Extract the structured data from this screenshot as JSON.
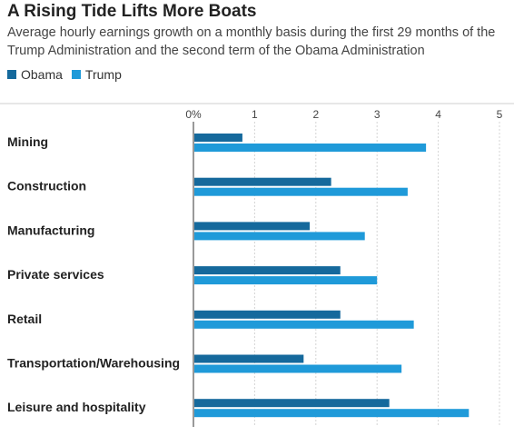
{
  "chart_data": {
    "type": "bar",
    "orientation": "horizontal",
    "title": "A Rising Tide Lifts More Boats",
    "subtitle": "Average hourly earnings growth on a monthly basis during the first 29 months of the Trump Administration and the second term of the Obama Administration",
    "categories": [
      "Mining",
      "Construction",
      "Manufacturing",
      "Private services",
      "Retail",
      "Transportation/Warehousing",
      "Leisure and hospitality"
    ],
    "series": [
      {
        "name": "Obama",
        "color": "#15699c",
        "values": [
          0.8,
          2.25,
          1.9,
          2.4,
          2.4,
          1.8,
          3.2
        ]
      },
      {
        "name": "Trump",
        "color": "#1f9ad9",
        "values": [
          3.8,
          3.5,
          2.8,
          3.0,
          3.6,
          3.4,
          4.5
        ]
      }
    ],
    "xlim": [
      0,
      5
    ],
    "xticks": [
      "0%",
      "1",
      "2",
      "3",
      "4",
      "5"
    ],
    "xlabel": "",
    "ylabel": "",
    "grid": true,
    "legend": "top-left"
  }
}
